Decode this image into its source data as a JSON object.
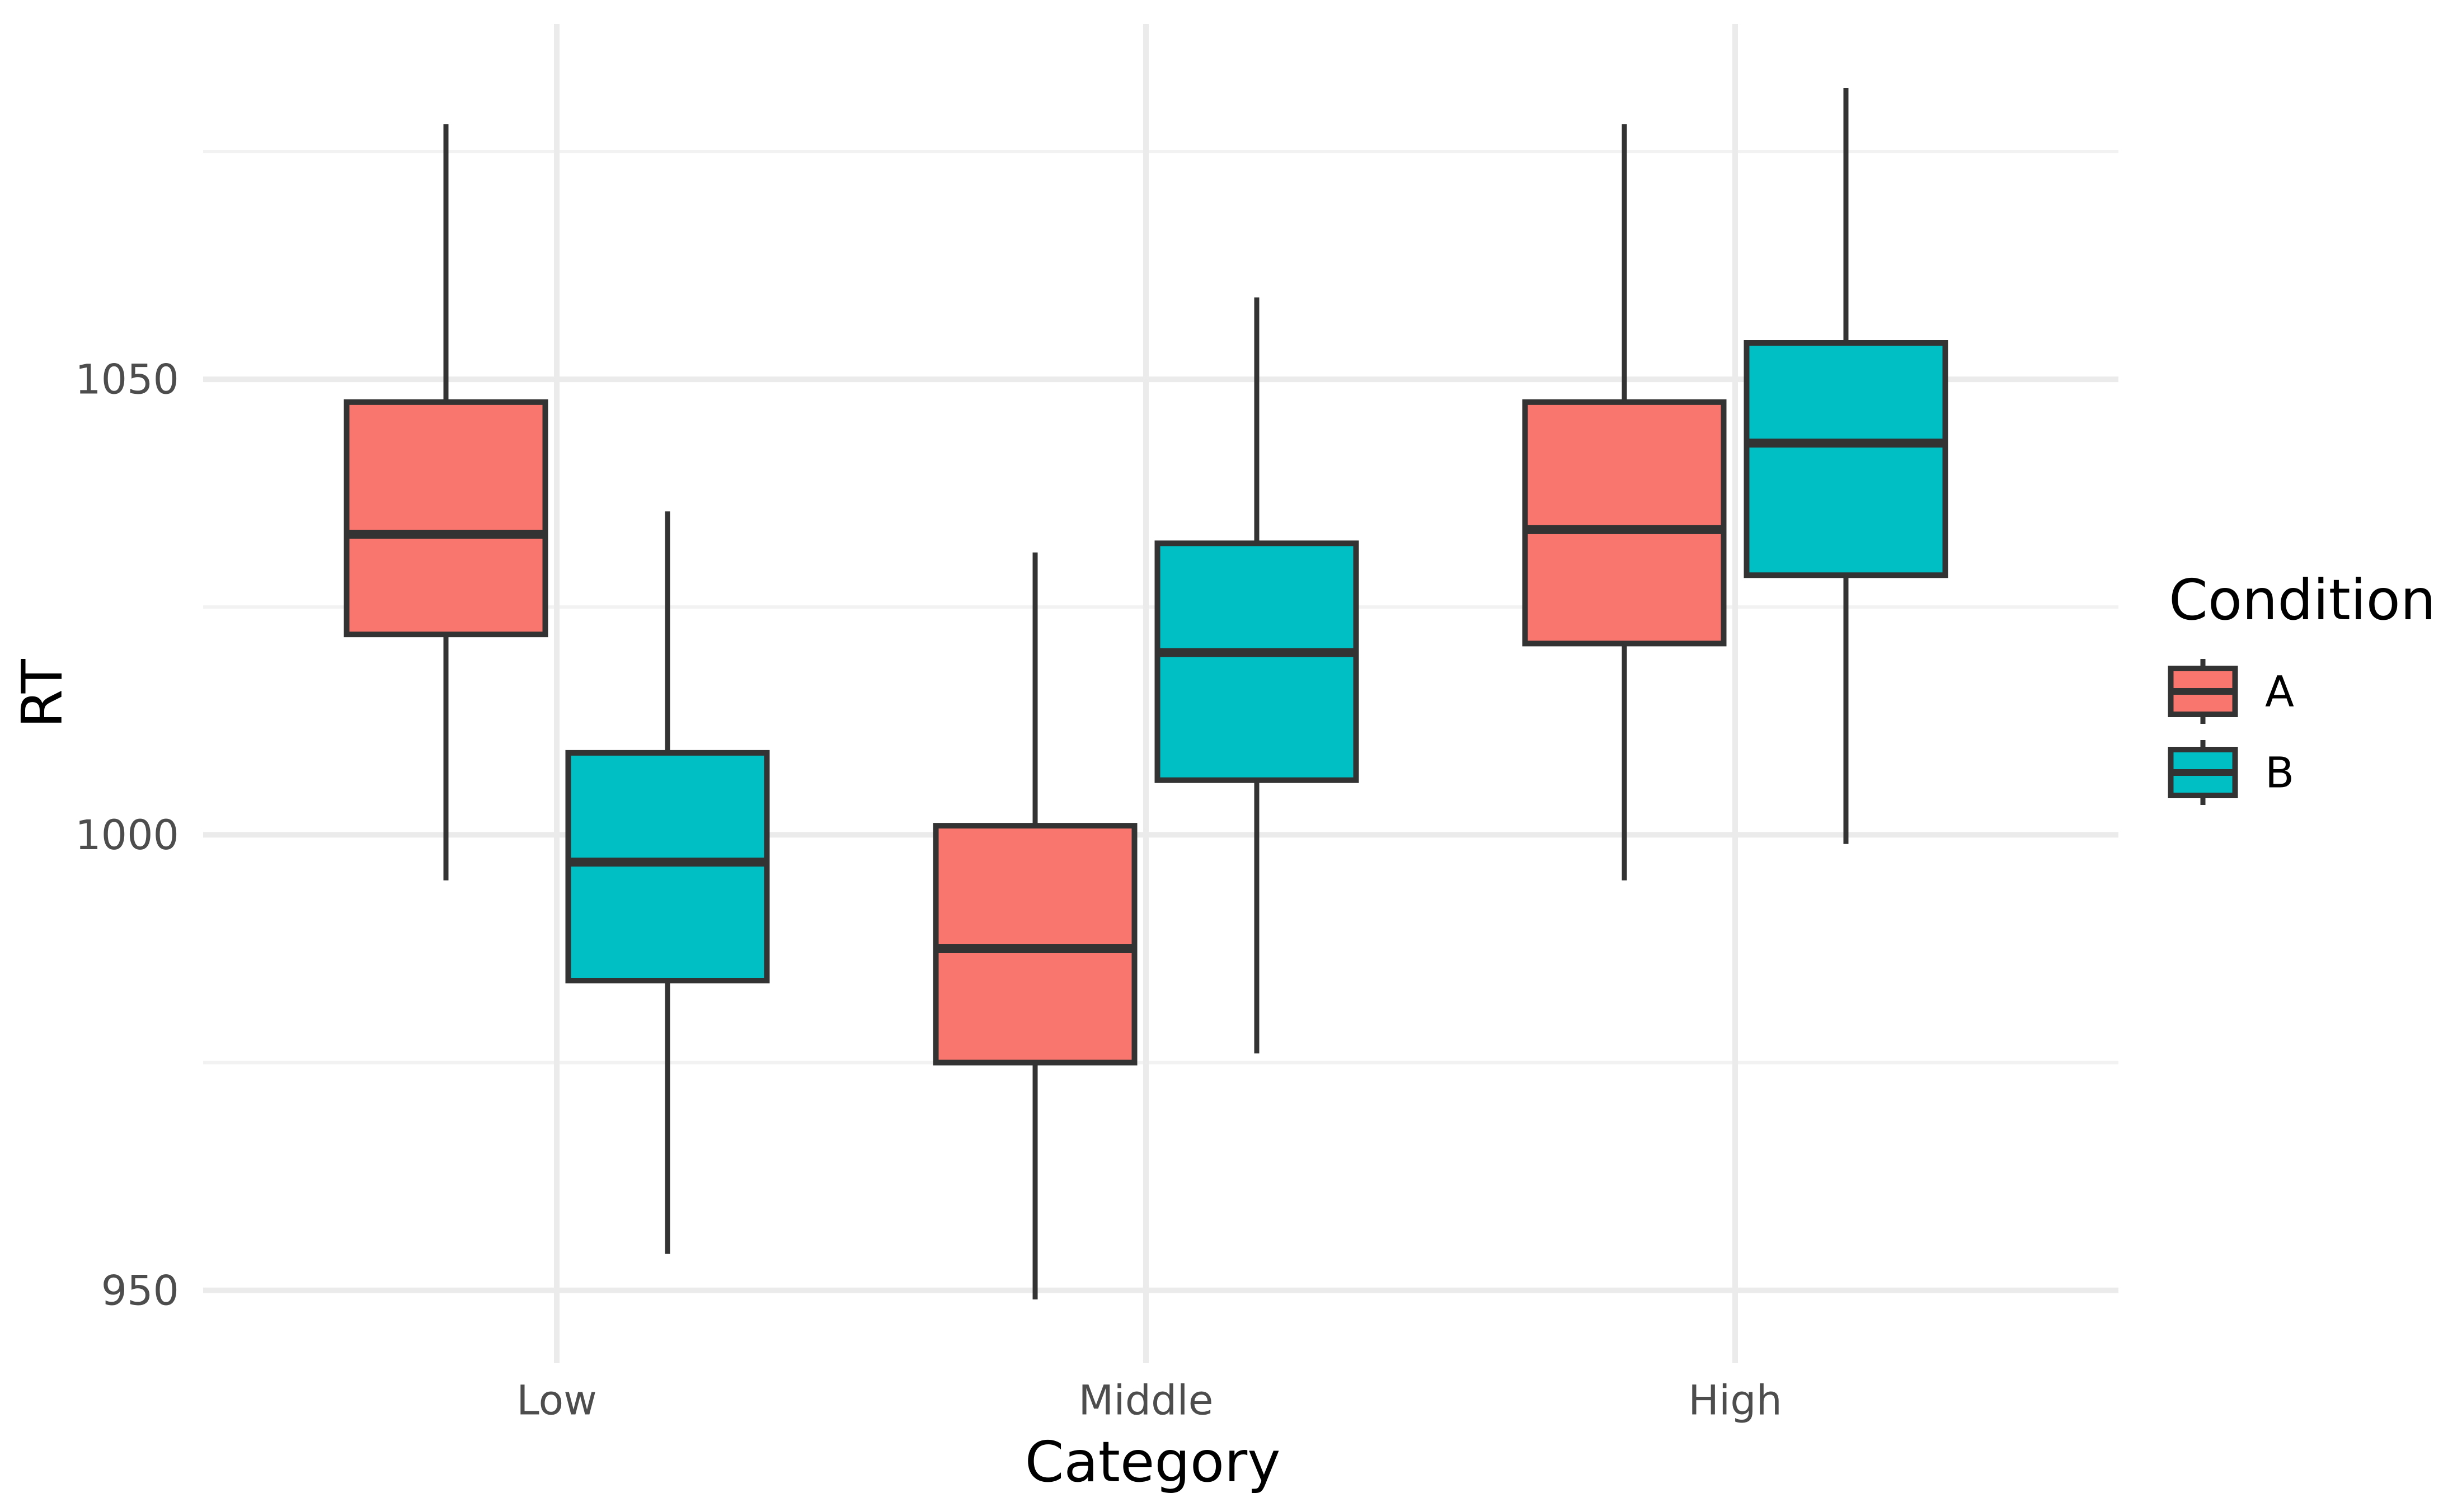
{
  "chart_data": {
    "type": "boxplot",
    "title": "",
    "xlabel": "Category",
    "ylabel": "RT",
    "categories": [
      "Low",
      "Middle",
      "High"
    ],
    "y_ticks": [
      950,
      1000,
      1050
    ],
    "y_minor_ticks": [
      975,
      1025,
      1075
    ],
    "ylim": [
      942,
      1089
    ],
    "grid": "horizontal major+minor and vertical major, light grey on white",
    "legend": {
      "title": "Condition",
      "position": "right",
      "entries": [
        {
          "label": "A",
          "color": "#F8766D"
        },
        {
          "label": "B",
          "color": "#00BFC4"
        }
      ]
    },
    "series": [
      {
        "name": "A",
        "color": "#F8766D",
        "boxes": [
          {
            "category": "Low",
            "whisker_low": 995,
            "q1": 1022,
            "median": 1033,
            "q3": 1047.5,
            "whisker_high": 1078
          },
          {
            "category": "Middle",
            "whisker_low": 949,
            "q1": 975,
            "median": 987.5,
            "q3": 1001,
            "whisker_high": 1031
          },
          {
            "category": "High",
            "whisker_low": 995,
            "q1": 1021,
            "median": 1033.5,
            "q3": 1047.5,
            "whisker_high": 1078
          }
        ]
      },
      {
        "name": "B",
        "color": "#00BFC4",
        "boxes": [
          {
            "category": "Low",
            "whisker_low": 954,
            "q1": 984,
            "median": 997,
            "q3": 1009,
            "whisker_high": 1035.5
          },
          {
            "category": "Middle",
            "whisker_low": 976,
            "q1": 1006,
            "median": 1020,
            "q3": 1032,
            "whisker_high": 1059
          },
          {
            "category": "High",
            "whisker_low": 999,
            "q1": 1028.5,
            "median": 1043,
            "q3": 1054,
            "whisker_high": 1082
          }
        ]
      }
    ],
    "style": {
      "box_outline": "#333333",
      "median_color": "#333333",
      "whisker_color": "#333333",
      "grid_major": "#EBEBEB",
      "grid_minor": "#F2F2F2",
      "tick_label_color": "#4D4D4D",
      "title_color": "#000000",
      "background": "#FFFFFF"
    }
  }
}
